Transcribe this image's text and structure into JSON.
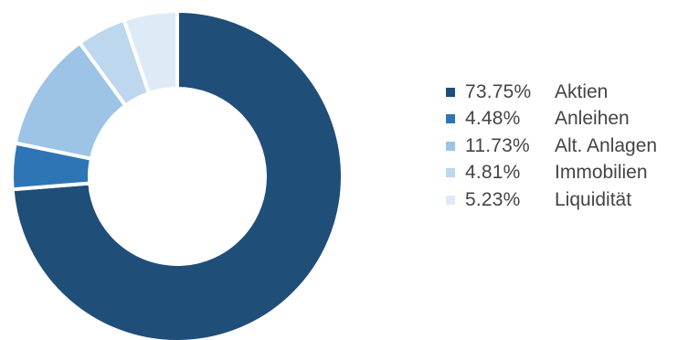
{
  "chart_data": {
    "type": "pie",
    "donut": true,
    "legend_position": "right",
    "slices": [
      {
        "label": "Aktien",
        "value": 73.75,
        "value_label": "73.75%",
        "color": "#1f4e79"
      },
      {
        "label": "Anleihen",
        "value": 4.48,
        "value_label": "4.48%",
        "color": "#2e75b6"
      },
      {
        "label": "Alt. Anlagen",
        "value": 11.73,
        "value_label": "11.73%",
        "color": "#9dc3e6"
      },
      {
        "label": "Immobilien",
        "value": 4.81,
        "value_label": "4.81%",
        "color": "#bdd7ee"
      },
      {
        "label": "Liquidität",
        "value": 5.23,
        "value_label": "5.23%",
        "color": "#deebf7"
      }
    ]
  }
}
